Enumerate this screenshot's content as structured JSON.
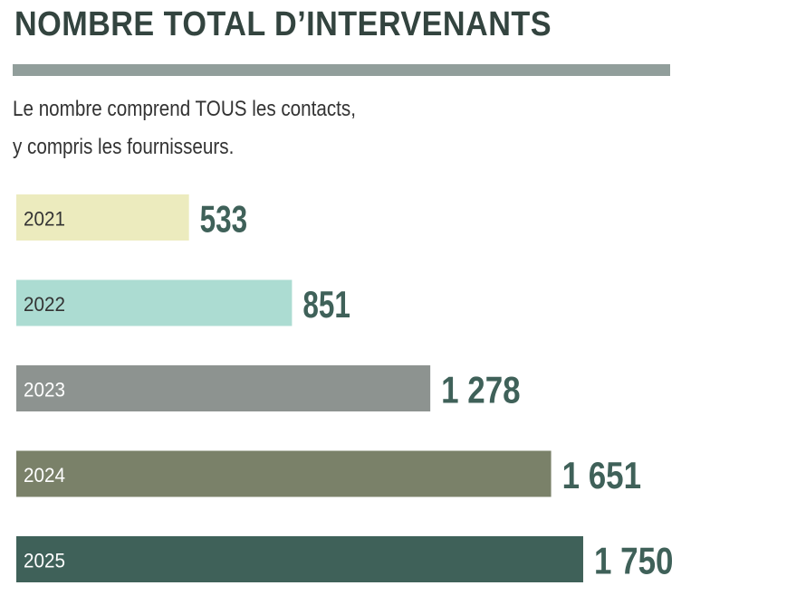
{
  "title": "NOMBRE TOTAL D’INTERVENANTS",
  "subtitle": {
    "line1": "Le nombre comprend TOUS les contacts,",
    "line2": "y compris les fournisseurs."
  },
  "colors": {
    "title": "#33443f",
    "rule": "#919e9b",
    "value_text": "#3f6159"
  },
  "chart_data": {
    "type": "bar",
    "orientation": "horizontal",
    "categories": [
      "2021",
      "2022",
      "2023",
      "2024",
      "2025"
    ],
    "values": [
      533,
      851,
      1278,
      1651,
      1750
    ],
    "value_labels": [
      "533",
      "851",
      "1 278",
      "1 651",
      "1 750"
    ],
    "bar_colors": [
      "#ecebbe",
      "#acdcd2",
      "#8d9390",
      "#7a8169",
      "#3f6159"
    ],
    "category_label_colors": [
      "#333333",
      "#333333",
      "#ffffff",
      "#ffffff",
      "#ffffff"
    ],
    "title": "NOMBRE TOTAL D’INTERVENANTS",
    "xlabel": "",
    "ylabel": "",
    "grid": false,
    "legend": "none"
  }
}
